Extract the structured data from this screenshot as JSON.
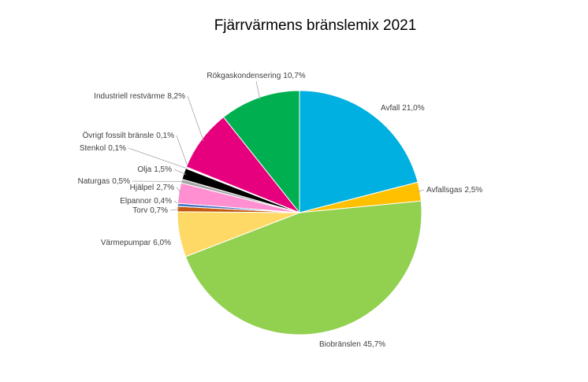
{
  "chart_data": {
    "type": "pie",
    "title": "Fjärrvärmens bränslemix 2021",
    "categories": [
      "Avfall",
      "Avfallsgas",
      "Biobränslen",
      "Värmepumpar",
      "Torv",
      "Elpannor",
      "Hjälpel",
      "Naturgas",
      "Olja",
      "Stenkol",
      "Övrigt fossilt bränsle",
      "Industriell restvärme",
      "Rökgaskondensering"
    ],
    "values": [
      21.0,
      2.5,
      45.7,
      6.0,
      0.7,
      0.4,
      2.7,
      0.5,
      1.5,
      0.1,
      0.1,
      8.2,
      10.7
    ],
    "value_labels": [
      "21,0%",
      "2,5%",
      "45,7%",
      "6,0%",
      "0,7%",
      "0,4%",
      "2,7%",
      "0,5%",
      "1,5%",
      "0,1%",
      "0,1%",
      "8,2%",
      "10,7%"
    ],
    "colors": [
      "#00b0e0",
      "#ffc000",
      "#92d050",
      "#ffd966",
      "#c55a11",
      "#4472c4",
      "#ff8fd0",
      "#a6a6a6",
      "#000000",
      "#7f7f7f",
      "#bfbfbf",
      "#e6007e",
      "#00b050"
    ]
  }
}
